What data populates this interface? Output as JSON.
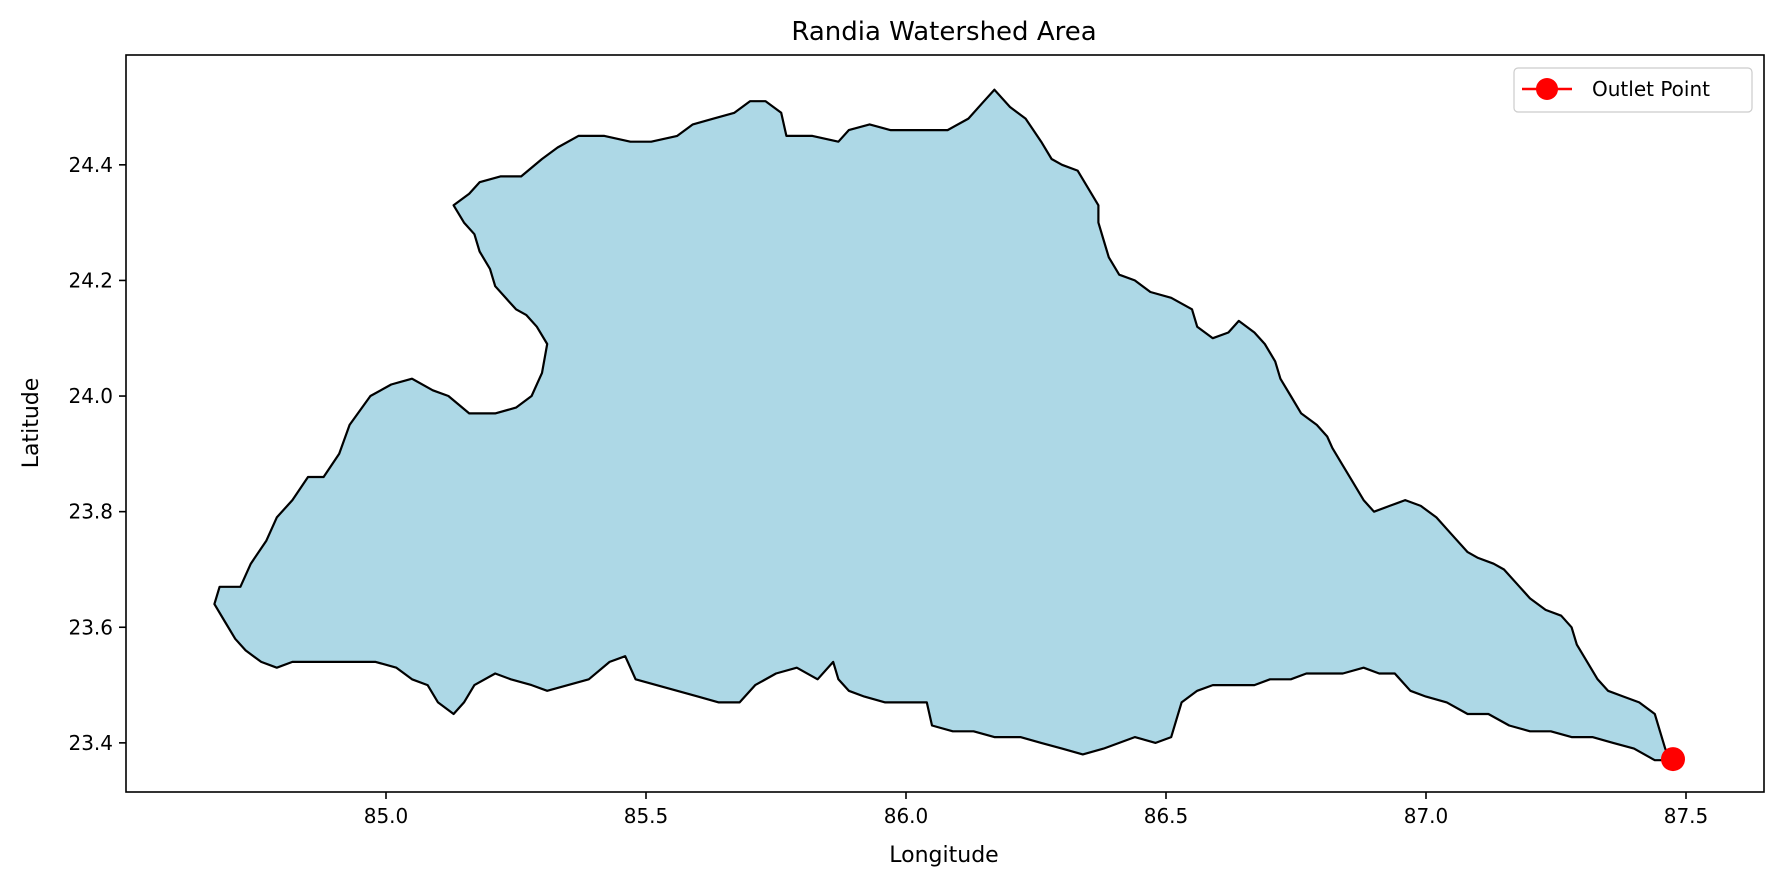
{
  "title": "Randia Watershed Area",
  "x_axis": {
    "label": "Longitude",
    "range": [
      84.5,
      87.65
    ],
    "ticks": [
      85.0,
      85.5,
      86.0,
      86.5,
      87.0,
      87.5
    ],
    "tick_labels": [
      "85.0",
      "85.5",
      "86.0",
      "86.5",
      "87.0",
      "87.5"
    ]
  },
  "y_axis": {
    "label": "Latitude",
    "range": [
      23.315,
      24.59
    ],
    "ticks": [
      23.4,
      23.6,
      23.8,
      24.0,
      24.2,
      24.4
    ],
    "tick_labels": [
      "23.4",
      "23.6",
      "23.8",
      "24.0",
      "24.2",
      "24.4"
    ]
  },
  "legend": {
    "placement": "top-right",
    "entries": [
      {
        "label": "Outlet Point",
        "color": "#ff0000",
        "marker": "circle"
      }
    ]
  },
  "watershed": {
    "fill_color": "#add8e6",
    "edge_color": "#000000",
    "boundary": [
      [
        85.13,
        24.33
      ],
      [
        85.16,
        24.35
      ],
      [
        85.18,
        24.37
      ],
      [
        85.22,
        24.38
      ],
      [
        85.26,
        24.38
      ],
      [
        85.3,
        24.41
      ],
      [
        85.33,
        24.43
      ],
      [
        85.37,
        24.45
      ],
      [
        85.42,
        24.45
      ],
      [
        85.47,
        24.44
      ],
      [
        85.51,
        24.44
      ],
      [
        85.56,
        24.45
      ],
      [
        85.59,
        24.47
      ],
      [
        85.63,
        24.48
      ],
      [
        85.67,
        24.49
      ],
      [
        85.7,
        24.51
      ],
      [
        85.73,
        24.51
      ],
      [
        85.76,
        24.49
      ],
      [
        85.77,
        24.45
      ],
      [
        85.82,
        24.45
      ],
      [
        85.87,
        24.44
      ],
      [
        85.89,
        24.46
      ],
      [
        85.93,
        24.47
      ],
      [
        85.97,
        24.46
      ],
      [
        86.02,
        24.46
      ],
      [
        86.08,
        24.46
      ],
      [
        86.12,
        24.48
      ],
      [
        86.15,
        24.51
      ],
      [
        86.17,
        24.53
      ],
      [
        86.2,
        24.5
      ],
      [
        86.23,
        24.48
      ],
      [
        86.26,
        24.44
      ],
      [
        86.28,
        24.41
      ],
      [
        86.3,
        24.4
      ],
      [
        86.33,
        24.39
      ],
      [
        86.35,
        24.36
      ],
      [
        86.37,
        24.33
      ],
      [
        86.37,
        24.3
      ],
      [
        86.38,
        24.27
      ],
      [
        86.39,
        24.24
      ],
      [
        86.41,
        24.21
      ],
      [
        86.44,
        24.2
      ],
      [
        86.47,
        24.18
      ],
      [
        86.51,
        24.17
      ],
      [
        86.55,
        24.15
      ],
      [
        86.56,
        24.12
      ],
      [
        86.59,
        24.1
      ],
      [
        86.62,
        24.11
      ],
      [
        86.64,
        24.13
      ],
      [
        86.67,
        24.11
      ],
      [
        86.69,
        24.09
      ],
      [
        86.71,
        24.06
      ],
      [
        86.72,
        24.03
      ],
      [
        86.74,
        24.0
      ],
      [
        86.76,
        23.97
      ],
      [
        86.79,
        23.95
      ],
      [
        86.81,
        23.93
      ],
      [
        86.82,
        23.91
      ],
      [
        86.84,
        23.88
      ],
      [
        86.86,
        23.85
      ],
      [
        86.88,
        23.82
      ],
      [
        86.9,
        23.8
      ],
      [
        86.93,
        23.81
      ],
      [
        86.96,
        23.82
      ],
      [
        86.99,
        23.81
      ],
      [
        87.02,
        23.79
      ],
      [
        87.05,
        23.76
      ],
      [
        87.08,
        23.73
      ],
      [
        87.1,
        23.72
      ],
      [
        87.13,
        23.71
      ],
      [
        87.15,
        23.7
      ],
      [
        87.18,
        23.67
      ],
      [
        87.2,
        23.65
      ],
      [
        87.23,
        23.63
      ],
      [
        87.26,
        23.62
      ],
      [
        87.28,
        23.6
      ],
      [
        87.29,
        23.57
      ],
      [
        87.31,
        23.54
      ],
      [
        87.33,
        23.51
      ],
      [
        87.35,
        23.49
      ],
      [
        87.38,
        23.48
      ],
      [
        87.41,
        23.47
      ],
      [
        87.44,
        23.45
      ],
      [
        87.45,
        23.42
      ],
      [
        87.46,
        23.39
      ],
      [
        87.47,
        23.37
      ],
      [
        87.44,
        23.37
      ],
      [
        87.4,
        23.39
      ],
      [
        87.36,
        23.4
      ],
      [
        87.32,
        23.41
      ],
      [
        87.28,
        23.41
      ],
      [
        87.24,
        23.42
      ],
      [
        87.2,
        23.42
      ],
      [
        87.16,
        23.43
      ],
      [
        87.12,
        23.45
      ],
      [
        87.08,
        23.45
      ],
      [
        87.04,
        23.47
      ],
      [
        87.0,
        23.48
      ],
      [
        86.97,
        23.49
      ],
      [
        86.94,
        23.52
      ],
      [
        86.91,
        23.52
      ],
      [
        86.88,
        23.53
      ],
      [
        86.84,
        23.52
      ],
      [
        86.8,
        23.52
      ],
      [
        86.77,
        23.52
      ],
      [
        86.74,
        23.51
      ],
      [
        86.7,
        23.51
      ],
      [
        86.67,
        23.5
      ],
      [
        86.63,
        23.5
      ],
      [
        86.59,
        23.5
      ],
      [
        86.56,
        23.49
      ],
      [
        86.53,
        23.47
      ],
      [
        86.52,
        23.44
      ],
      [
        86.51,
        23.41
      ],
      [
        86.48,
        23.4
      ],
      [
        86.44,
        23.41
      ],
      [
        86.41,
        23.4
      ],
      [
        86.38,
        23.39
      ],
      [
        86.34,
        23.38
      ],
      [
        86.3,
        23.39
      ],
      [
        86.26,
        23.4
      ],
      [
        86.22,
        23.41
      ],
      [
        86.17,
        23.41
      ],
      [
        86.13,
        23.42
      ],
      [
        86.09,
        23.42
      ],
      [
        86.05,
        23.43
      ],
      [
        86.04,
        23.47
      ],
      [
        86.0,
        23.47
      ],
      [
        85.96,
        23.47
      ],
      [
        85.92,
        23.48
      ],
      [
        85.89,
        23.49
      ],
      [
        85.87,
        23.51
      ],
      [
        85.86,
        23.54
      ],
      [
        85.83,
        23.51
      ],
      [
        85.79,
        23.53
      ],
      [
        85.75,
        23.52
      ],
      [
        85.71,
        23.5
      ],
      [
        85.68,
        23.47
      ],
      [
        85.64,
        23.47
      ],
      [
        85.6,
        23.48
      ],
      [
        85.56,
        23.49
      ],
      [
        85.52,
        23.5
      ],
      [
        85.48,
        23.51
      ],
      [
        85.46,
        23.55
      ],
      [
        85.43,
        23.54
      ],
      [
        85.39,
        23.51
      ],
      [
        85.35,
        23.5
      ],
      [
        85.31,
        23.49
      ],
      [
        85.28,
        23.5
      ],
      [
        85.24,
        23.51
      ],
      [
        85.21,
        23.52
      ],
      [
        85.17,
        23.5
      ],
      [
        85.15,
        23.47
      ],
      [
        85.13,
        23.45
      ],
      [
        85.1,
        23.47
      ],
      [
        85.08,
        23.5
      ],
      [
        85.05,
        23.51
      ],
      [
        85.02,
        23.53
      ],
      [
        84.98,
        23.54
      ],
      [
        84.94,
        23.54
      ],
      [
        84.9,
        23.54
      ],
      [
        84.86,
        23.54
      ],
      [
        84.82,
        23.54
      ],
      [
        84.79,
        23.53
      ],
      [
        84.76,
        23.54
      ],
      [
        84.73,
        23.56
      ],
      [
        84.71,
        23.58
      ],
      [
        84.69,
        23.61
      ],
      [
        84.67,
        23.64
      ],
      [
        84.68,
        23.67
      ],
      [
        84.72,
        23.67
      ],
      [
        84.74,
        23.71
      ],
      [
        84.77,
        23.75
      ],
      [
        84.79,
        23.79
      ],
      [
        84.82,
        23.82
      ],
      [
        84.85,
        23.86
      ],
      [
        84.88,
        23.86
      ],
      [
        84.91,
        23.9
      ],
      [
        84.93,
        23.95
      ],
      [
        84.97,
        24.0
      ],
      [
        85.01,
        24.02
      ],
      [
        85.05,
        24.03
      ],
      [
        85.09,
        24.01
      ],
      [
        85.12,
        24.0
      ],
      [
        85.16,
        23.97
      ],
      [
        85.21,
        23.97
      ],
      [
        85.25,
        23.98
      ],
      [
        85.28,
        24.0
      ],
      [
        85.3,
        24.04
      ],
      [
        85.31,
        24.09
      ],
      [
        85.29,
        24.12
      ],
      [
        85.27,
        24.14
      ],
      [
        85.25,
        24.15
      ],
      [
        85.23,
        24.17
      ],
      [
        85.21,
        24.19
      ],
      [
        85.2,
        24.22
      ],
      [
        85.18,
        24.25
      ],
      [
        85.17,
        24.28
      ],
      [
        85.15,
        24.3
      ],
      [
        85.13,
        24.33
      ]
    ]
  },
  "outlet_point": {
    "label": "Outlet Point",
    "lon": 87.475,
    "lat": 23.372,
    "color": "#ff0000"
  }
}
